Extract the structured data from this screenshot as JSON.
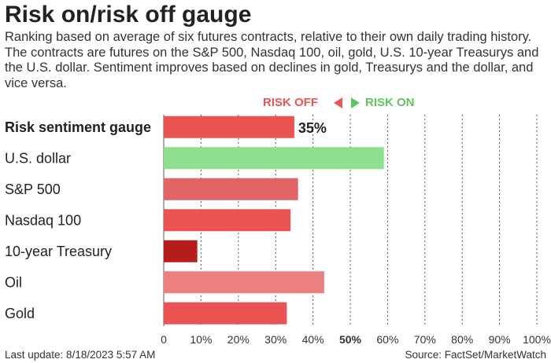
{
  "title": "Risk on/risk off gauge",
  "subtitle": "Ranking based on average of six futures contracts, relative to their own daily trading history. The contracts are futures on the S&P 500, Nasdaq 100, oil, gold, U.S. 10-year Treasurys and the U.S. dollar. Sentiment improves based on declines in gold, Treasurys and the dollar, and vice versa.",
  "legend": {
    "risk_off": "RISK OFF",
    "risk_on": "RISK ON"
  },
  "footer": {
    "last_update": "Last update: 8/18/2023 5:57 AM",
    "source": "Source: FactSet/MarketWatch"
  },
  "colors": {
    "risk_off": "#ec5353",
    "risk_on": "#5fc55f"
  },
  "chart_data": {
    "type": "bar",
    "orientation": "horizontal",
    "categories": [
      "Risk sentiment gauge",
      "U.S. dollar",
      "S&P 500",
      "Nasdaq 100",
      "10-year Treasury",
      "Oil",
      "Gold"
    ],
    "values": [
      35,
      59,
      36,
      34,
      9,
      43,
      33
    ],
    "data_labels": [
      "35%",
      "",
      "",
      "",
      "",
      "",
      ""
    ],
    "bar_colors": [
      "#ec5353",
      "#8ee08e",
      "#e26464",
      "#ec5353",
      "#b71c1c",
      "#ec8080",
      "#ec5353"
    ],
    "bold_categories": [
      true,
      false,
      false,
      false,
      false,
      false,
      false
    ],
    "xlim": [
      0,
      100
    ],
    "xticks": [
      0,
      10,
      20,
      30,
      40,
      50,
      60,
      70,
      80,
      90,
      100
    ],
    "xtick_labels": [
      "0",
      "10%",
      "20%",
      "30%",
      "40%",
      "50%",
      "60%",
      "70%",
      "80%",
      "90%",
      "100%"
    ],
    "bold_ticks": [
      50
    ],
    "grid": "vertical dotted"
  }
}
